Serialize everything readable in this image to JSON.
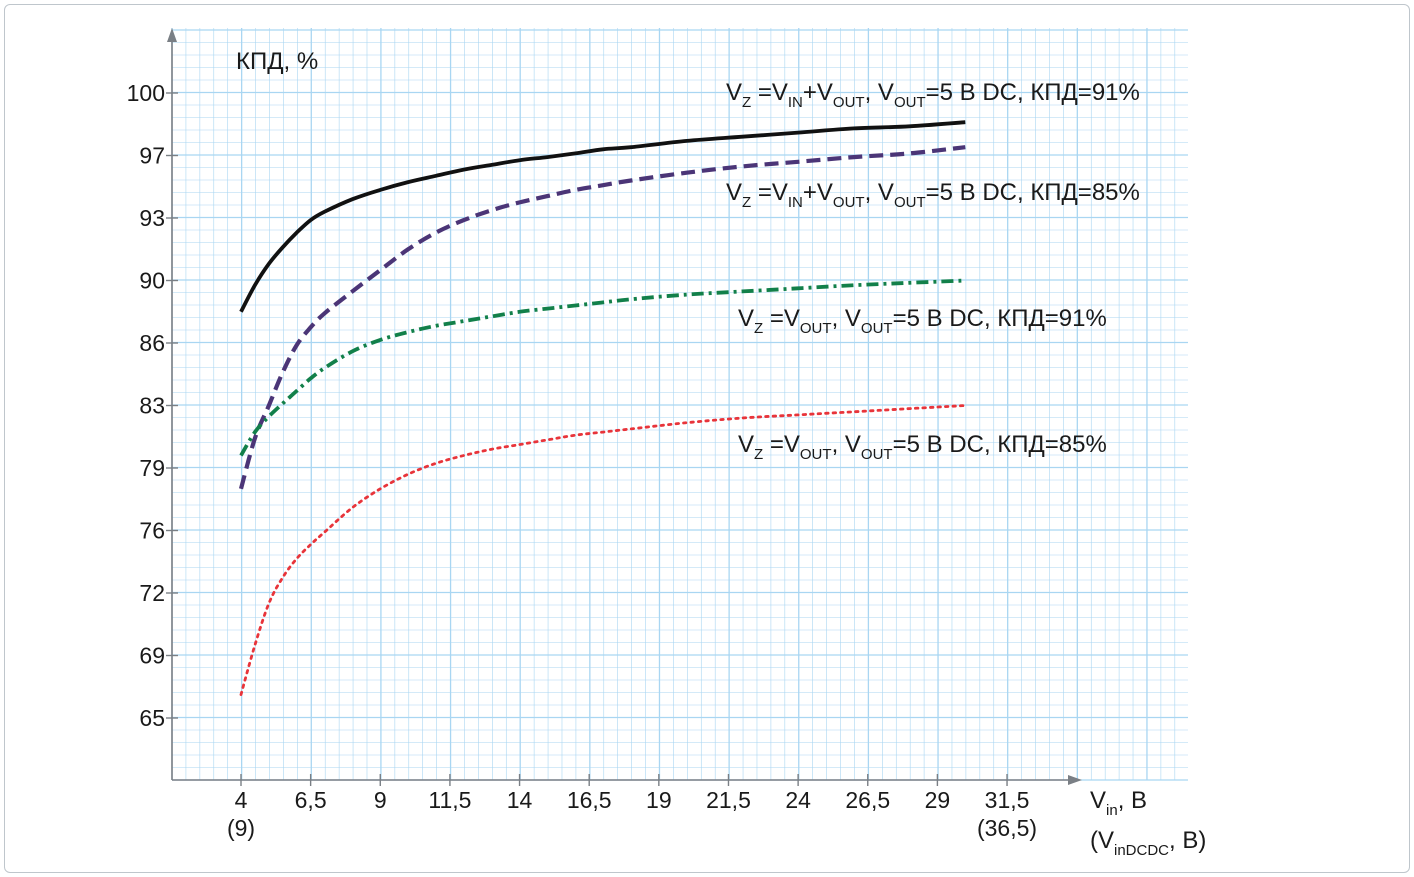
{
  "chart_data": {
    "type": "line",
    "title": "",
    "ylabel": "КПД, %",
    "xlabel": {
      "main": "V",
      "main_sub": "in",
      "main_suffix": ", В",
      "alt_open": "(V",
      "alt_sub": "inDCDC",
      "alt_suffix": ", В)"
    },
    "grid": true,
    "y_ticks": [
      "100",
      "97",
      "93",
      "90",
      "86",
      "83",
      "79",
      "76",
      "72",
      "69",
      "65"
    ],
    "x_ticks": [
      "4",
      "6,5",
      "9",
      "11,5",
      "14",
      "16,5",
      "19",
      "21,5",
      "24",
      "26,5",
      "29",
      "31,5"
    ],
    "x_ticks_secondary": [
      {
        "at": "4",
        "label": "(9)"
      },
      {
        "at": "31,5",
        "label": "(36,5)"
      }
    ],
    "series": [
      {
        "style": "solid",
        "color": "#111111",
        "label_parts": [
          [
            "V",
            ""
          ],
          [
            "Z",
            "sub"
          ],
          [
            " =V",
            ""
          ],
          [
            "IN",
            "sub"
          ],
          [
            "+V",
            ""
          ],
          [
            "OUT",
            "sub"
          ],
          [
            ", V",
            ""
          ],
          [
            "OUT",
            "sub"
          ],
          [
            "=5 В DC, КПД=91%",
            ""
          ]
        ],
        "x": [
          4,
          4.5,
          5,
          5.5,
          6,
          6.5,
          7,
          8,
          9,
          10,
          11,
          12,
          13,
          14,
          15,
          16,
          17,
          18,
          20,
          22,
          24,
          26,
          28,
          30
        ],
        "y": [
          88.0,
          89.7,
          90.8,
          91.6,
          92.3,
          92.9,
          93.4,
          94.2,
          94.8,
          95.3,
          95.7,
          96.1,
          96.4,
          96.7,
          96.9,
          97.1,
          97.3,
          97.4,
          97.7,
          97.9,
          98.1,
          98.3,
          98.4,
          98.6
        ]
      },
      {
        "style": "dashed",
        "color": "#4b3577",
        "label_parts": [
          [
            "V",
            ""
          ],
          [
            "Z",
            "sub"
          ],
          [
            " =V",
            ""
          ],
          [
            "IN",
            "sub"
          ],
          [
            "+V",
            ""
          ],
          [
            "OUT",
            "sub"
          ],
          [
            ", V",
            ""
          ],
          [
            "OUT",
            "sub"
          ],
          [
            "=5 В DC, КПД=85%",
            ""
          ]
        ],
        "x": [
          4,
          4.5,
          5,
          5.5,
          6,
          6.5,
          7,
          8,
          9,
          10,
          11,
          12,
          13,
          14,
          15,
          16,
          17,
          18,
          20,
          22,
          24,
          26,
          28,
          30
        ],
        "y": [
          78.0,
          80.9,
          83.0,
          84.6,
          85.9,
          87.0,
          87.9,
          89.3,
          90.5,
          91.5,
          92.3,
          92.9,
          93.5,
          94.0,
          94.4,
          94.8,
          95.1,
          95.4,
          95.9,
          96.3,
          96.6,
          96.9,
          97.1,
          97.4
        ]
      },
      {
        "style": "dashdot",
        "color": "#12804a",
        "label_parts": [
          [
            "V",
            ""
          ],
          [
            "Z",
            "sub"
          ],
          [
            " =V",
            ""
          ],
          [
            "OUT",
            "sub"
          ],
          [
            ", V",
            ""
          ],
          [
            "OUT",
            "sub"
          ],
          [
            "=5 В DC, КПД=91%",
            ""
          ]
        ],
        "x": [
          4,
          4.5,
          5,
          5.5,
          6,
          6.5,
          7,
          8,
          9,
          10,
          11,
          12,
          13,
          14,
          15,
          16,
          17,
          18,
          20,
          22,
          24,
          26,
          28,
          30
        ],
        "y": [
          79.8,
          81.3,
          82.3,
          83.1,
          83.7,
          84.3,
          84.8,
          85.6,
          86.2,
          86.7,
          87.1,
          87.4,
          87.7,
          88.0,
          88.2,
          88.4,
          88.6,
          88.8,
          89.1,
          89.3,
          89.5,
          89.7,
          89.85,
          90.0
        ]
      },
      {
        "style": "dotted",
        "color": "#e8343a",
        "label_parts": [
          [
            "V",
            ""
          ],
          [
            "Z",
            "sub"
          ],
          [
            " =V",
            ""
          ],
          [
            "OUT",
            "sub"
          ],
          [
            ", V",
            ""
          ],
          [
            "OUT",
            "sub"
          ],
          [
            "=5 В DC, КПД=85%",
            ""
          ]
        ],
        "x": [
          4,
          4.5,
          5,
          5.5,
          6,
          6.5,
          7,
          8,
          9,
          10,
          11,
          12,
          13,
          14,
          15,
          16,
          17,
          18,
          20,
          22,
          24,
          26,
          28,
          30
        ],
        "y": [
          66.5,
          69.5,
          71.5,
          73.0,
          74.2,
          75.1,
          75.9,
          77.1,
          78.0,
          78.7,
          79.3,
          79.8,
          80.2,
          80.5,
          80.8,
          81.1,
          81.3,
          81.5,
          81.9,
          82.2,
          82.4,
          82.6,
          82.8,
          83.0
        ]
      }
    ]
  }
}
